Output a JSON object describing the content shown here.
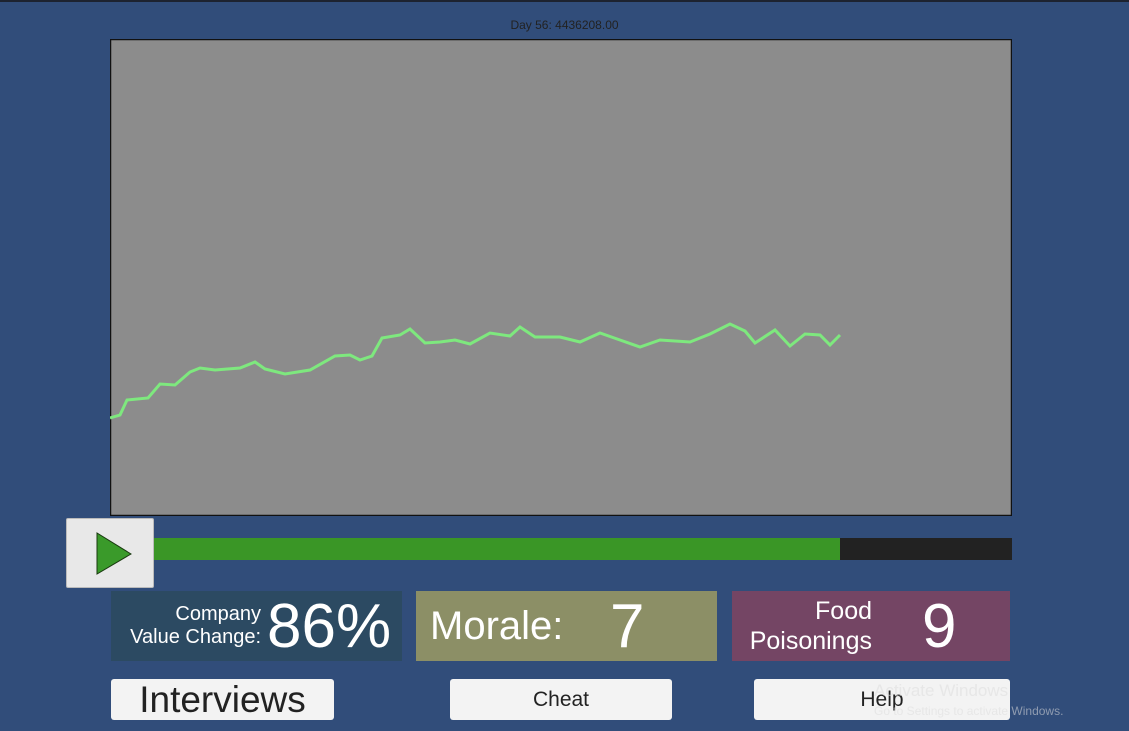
{
  "header": {
    "title": "Day 56: 4436208.00"
  },
  "stats": [
    {
      "label": [
        "Company",
        "Value Change:"
      ],
      "value": "86%"
    },
    {
      "label": [
        "Morale:"
      ],
      "value": "7"
    },
    {
      "label": [
        "Food",
        "Poisonings"
      ],
      "value": "9"
    }
  ],
  "buttons": [
    "Interviews",
    "Cheat",
    "Help"
  ],
  "watermark": {
    "title": "Activate Windows",
    "subtitle": "Go to Settings to activate Windows."
  }
}
